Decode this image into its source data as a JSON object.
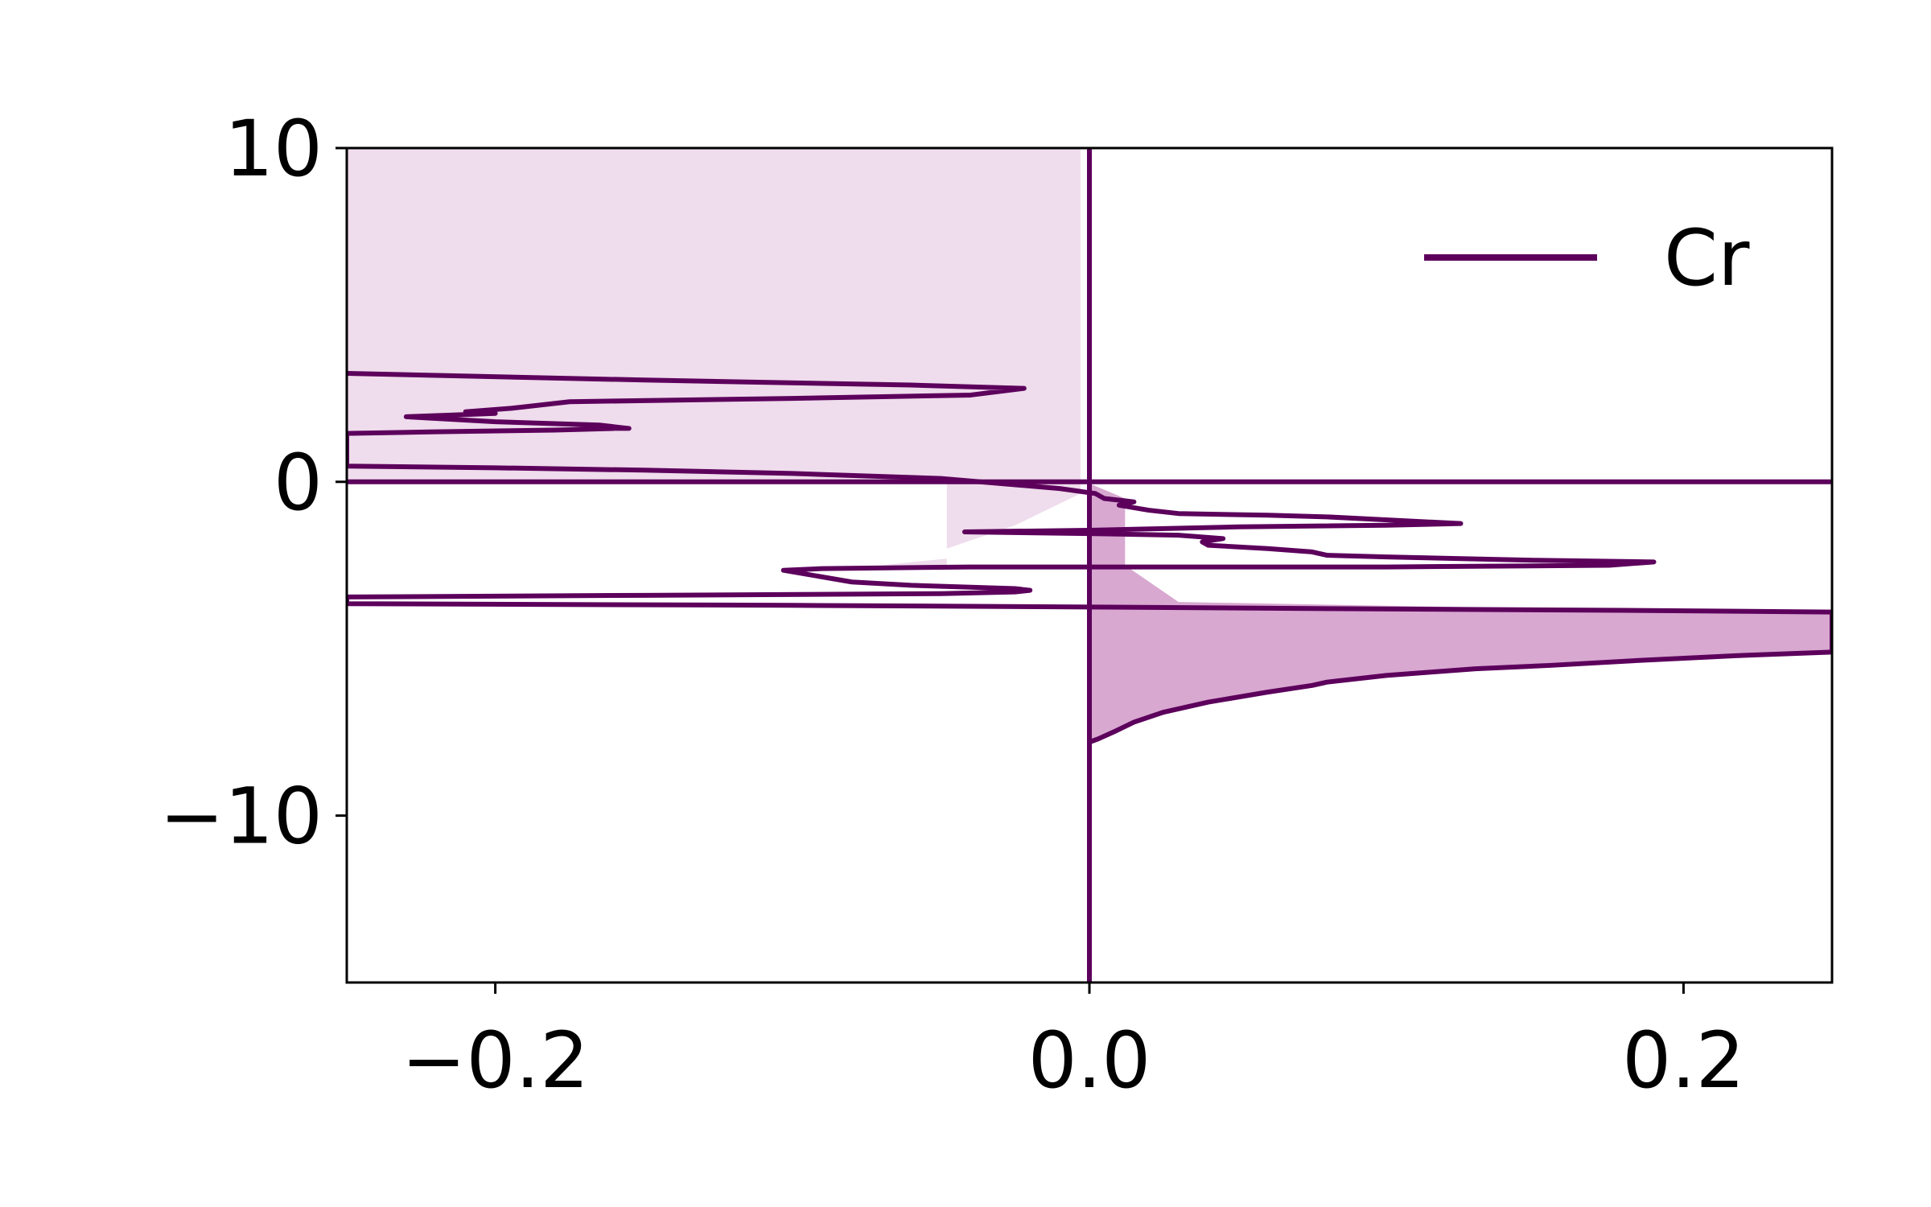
{
  "chart_data": {
    "type": "line",
    "title": "",
    "xlabel": "",
    "ylabel": "",
    "xlim": [
      -0.25,
      0.25
    ],
    "ylim": [
      -15,
      10
    ],
    "x_ticks": [
      -0.2,
      0.0,
      0.2
    ],
    "x_tick_labels": [
      "−0.2",
      "0.0",
      "0.2"
    ],
    "y_ticks": [
      10,
      0,
      -10
    ],
    "y_tick_labels": [
      "10",
      "0",
      "−10"
    ],
    "grid": false,
    "legend": {
      "position": "top-right",
      "entries": [
        "Cr"
      ]
    },
    "colors": {
      "line": "#5c005c",
      "fill": "#d8a8d0",
      "fill_light": "#efdcec",
      "axes": "#000000"
    },
    "series": [
      {
        "name": "Cr",
        "points": [
          [
            0.0,
            -15.0
          ],
          [
            0.0,
            -7.8
          ],
          [
            0.003,
            -7.7
          ],
          [
            0.008,
            -7.5
          ],
          [
            0.015,
            -7.2
          ],
          [
            0.025,
            -6.9
          ],
          [
            0.04,
            -6.6
          ],
          [
            0.06,
            -6.3
          ],
          [
            0.075,
            -6.1
          ],
          [
            0.08,
            -6.0
          ],
          [
            0.1,
            -5.8
          ],
          [
            0.115,
            -5.7
          ],
          [
            0.13,
            -5.6
          ],
          [
            0.155,
            -5.5
          ],
          [
            0.185,
            -5.35
          ],
          [
            0.22,
            -5.2
          ],
          [
            0.25,
            -5.1
          ],
          [
            0.25,
            -3.9
          ],
          [
            0.18,
            -3.85
          ],
          [
            0.08,
            -3.8
          ],
          [
            0.0,
            -3.75
          ],
          [
            -0.1,
            -3.7
          ],
          [
            -0.25,
            -3.65
          ],
          [
            -0.25,
            -3.45
          ],
          [
            -0.15,
            -3.4
          ],
          [
            -0.05,
            -3.35
          ],
          [
            -0.025,
            -3.3
          ],
          [
            -0.02,
            -3.25
          ],
          [
            -0.025,
            -3.2
          ],
          [
            -0.06,
            -3.1
          ],
          [
            -0.08,
            -3.0
          ],
          [
            -0.103,
            -2.65
          ],
          [
            -0.09,
            -2.6
          ],
          [
            -0.04,
            -2.55
          ],
          [
            0.0,
            -2.55
          ],
          [
            0.1,
            -2.55
          ],
          [
            0.175,
            -2.5
          ],
          [
            0.19,
            -2.4
          ],
          [
            0.15,
            -2.35
          ],
          [
            0.1,
            -2.25
          ],
          [
            0.08,
            -2.2
          ],
          [
            0.075,
            -2.1
          ],
          [
            0.06,
            -2.0
          ],
          [
            0.04,
            -1.9
          ],
          [
            0.038,
            -1.8
          ],
          [
            0.045,
            -1.7
          ],
          [
            0.03,
            -1.6
          ],
          [
            0.0,
            -1.55
          ],
          [
            -0.042,
            -1.5
          ],
          [
            0.0,
            -1.45
          ],
          [
            0.05,
            -1.35
          ],
          [
            0.1,
            -1.3
          ],
          [
            0.125,
            -1.25
          ],
          [
            0.08,
            -1.05
          ],
          [
            0.06,
            -1.0
          ],
          [
            0.03,
            -0.95
          ],
          [
            0.02,
            -0.85
          ],
          [
            0.01,
            -0.7
          ],
          [
            0.015,
            -0.6
          ],
          [
            0.005,
            -0.5
          ],
          [
            0.002,
            -0.35
          ],
          [
            -0.01,
            -0.2
          ],
          [
            -0.05,
            0.1
          ],
          [
            -0.1,
            0.25
          ],
          [
            -0.15,
            0.35
          ],
          [
            -0.2,
            0.42
          ],
          [
            -0.25,
            0.47
          ],
          [
            -0.25,
            1.45
          ],
          [
            -0.22,
            1.5
          ],
          [
            -0.18,
            1.55
          ],
          [
            -0.16,
            1.6
          ],
          [
            -0.155,
            1.6
          ],
          [
            -0.165,
            1.7
          ],
          [
            -0.2,
            1.8
          ],
          [
            -0.23,
            1.95
          ],
          [
            -0.215,
            2.0
          ],
          [
            -0.2,
            2.05
          ],
          [
            -0.21,
            2.1
          ],
          [
            -0.195,
            2.2
          ],
          [
            -0.19,
            2.25
          ],
          [
            -0.175,
            2.4
          ],
          [
            -0.1,
            2.5
          ],
          [
            -0.04,
            2.6
          ],
          [
            -0.022,
            2.8
          ],
          [
            -0.06,
            2.9
          ],
          [
            -0.15,
            3.05
          ],
          [
            -0.25,
            3.25
          ]
        ],
        "fill_regions": [
          {
            "shade": "light",
            "points": [
              [
                -0.25,
                10
              ],
              [
                -0.003,
                10
              ],
              [
                -0.003,
                0.05
              ],
              [
                -0.25,
                0.05
              ]
            ]
          },
          {
            "shade": "light",
            "points": [
              [
                -0.048,
                0.05
              ],
              [
                -0.003,
                0.05
              ],
              [
                -0.003,
                -0.35
              ],
              [
                -0.025,
                -1.3
              ],
              [
                -0.048,
                -2.0
              ]
            ]
          },
          {
            "shade": "light",
            "points": [
              [
                -0.048,
                -2.5
              ],
              [
                -0.07,
                -2.5
              ],
              [
                -0.048,
                -2.3
              ]
            ]
          },
          {
            "shade": "dark",
            "points": [
              [
                0.0,
                -0.05
              ],
              [
                0.012,
                -0.5
              ],
              [
                0.012,
                -2.5
              ],
              [
                0.03,
                -3.6
              ],
              [
                0.25,
                -3.95
              ],
              [
                0.25,
                -5.1
              ],
              [
                0.22,
                -5.2
              ],
              [
                0.185,
                -5.35
              ],
              [
                0.155,
                -5.5
              ],
              [
                0.13,
                -5.6
              ],
              [
                0.1,
                -5.8
              ],
              [
                0.08,
                -6.0
              ],
              [
                0.06,
                -6.3
              ],
              [
                0.04,
                -6.6
              ],
              [
                0.025,
                -6.9
              ],
              [
                0.015,
                -7.2
              ],
              [
                0.008,
                -7.5
              ],
              [
                0.0,
                -7.8
              ]
            ]
          }
        ],
        "reference_lines": {
          "horizontal_at_y": 0.0,
          "vertical_at_x": 0.0
        }
      }
    ]
  }
}
